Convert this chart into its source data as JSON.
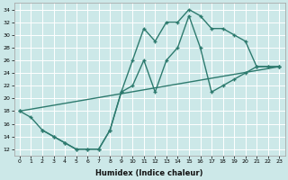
{
  "xlabel": "Humidex (Indice chaleur)",
  "bg_color": "#cce8e8",
  "grid_color": "#ffffff",
  "line_color": "#2d7a6e",
  "markersize": 3,
  "linewidth": 1.0,
  "xlim": [
    -0.5,
    23.5
  ],
  "ylim": [
    11,
    35
  ],
  "xticks": [
    0,
    1,
    2,
    3,
    4,
    5,
    6,
    7,
    8,
    9,
    10,
    11,
    12,
    13,
    14,
    15,
    16,
    17,
    18,
    19,
    20,
    21,
    22,
    23
  ],
  "yticks": [
    12,
    14,
    16,
    18,
    20,
    22,
    24,
    26,
    28,
    30,
    32,
    34
  ],
  "line1_x": [
    0,
    1,
    2,
    3,
    4,
    5,
    6,
    7,
    8,
    9,
    10,
    11,
    12,
    13,
    14,
    15,
    16,
    17,
    18,
    19,
    20,
    21,
    22,
    23
  ],
  "line1_y": [
    18,
    17,
    15,
    14,
    13,
    12,
    12,
    12,
    15,
    21,
    26,
    31,
    29,
    32,
    32,
    34,
    33,
    31,
    31,
    30,
    29,
    25,
    25,
    25
  ],
  "line2_x": [
    0,
    23
  ],
  "line2_y": [
    18,
    25
  ],
  "line3_x": [
    2,
    3,
    4,
    5,
    6,
    7,
    8,
    9,
    10,
    11,
    12,
    13,
    14,
    15,
    16,
    17,
    18,
    19,
    20,
    21,
    22,
    23
  ],
  "line3_y": [
    15,
    14,
    13,
    12,
    12,
    12,
    15,
    21,
    22,
    26,
    21,
    26,
    28,
    33,
    28,
    21,
    22,
    23,
    24,
    25,
    25,
    25
  ]
}
